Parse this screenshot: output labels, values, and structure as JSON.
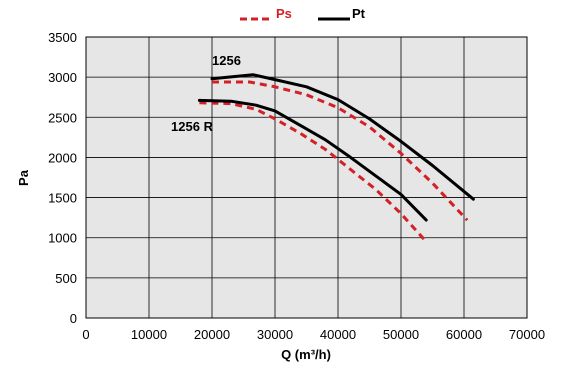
{
  "chart_data": {
    "type": "line",
    "xlabel": "Q (m³/h)",
    "ylabel": "Pa",
    "xlim": [
      0,
      70000
    ],
    "ylim": [
      0,
      3500
    ],
    "x_ticks": [
      "0",
      "10000",
      "20000",
      "30000",
      "40000",
      "50000",
      "60000",
      "70000"
    ],
    "y_ticks": [
      "0",
      "500",
      "1000",
      "1500",
      "2000",
      "2500",
      "3000",
      "3500"
    ],
    "grid": true,
    "legend_position": "top",
    "legend": [
      {
        "name": "Ps",
        "color": "#d42027",
        "style": "dashed"
      },
      {
        "name": "Pt",
        "color": "#000000",
        "style": "solid"
      }
    ],
    "annotations": [
      {
        "text": "1256",
        "x": 20000,
        "y": 3150
      },
      {
        "text": "1256 R",
        "x": 13500,
        "y": 2330
      }
    ],
    "series": [
      {
        "name": "Ps",
        "curve": "1256",
        "color": "#d42027",
        "style": "dashed",
        "x": [
          20000,
          26000,
          30000,
          35000,
          40000,
          45000,
          50000,
          55000,
          60500
        ],
        "y": [
          2940,
          2940,
          2880,
          2780,
          2620,
          2380,
          2050,
          1680,
          1220
        ]
      },
      {
        "name": "Pt",
        "curve": "1256",
        "color": "#000000",
        "style": "solid",
        "x": [
          20000,
          26500,
          30000,
          35000,
          40000,
          45000,
          50000,
          55000,
          61500
        ],
        "y": [
          2980,
          3030,
          2970,
          2880,
          2720,
          2480,
          2200,
          1900,
          1480
        ]
      },
      {
        "name": "Ps",
        "curve": "1256 R",
        "color": "#d42027",
        "style": "dashed",
        "x": [
          18000,
          23000,
          27000,
          30000,
          34000,
          38000,
          42000,
          46000,
          50000,
          54000
        ],
        "y": [
          2680,
          2670,
          2600,
          2480,
          2300,
          2100,
          1850,
          1600,
          1300,
          950
        ]
      },
      {
        "name": "Pt",
        "curve": "1256 R",
        "color": "#000000",
        "style": "solid",
        "x": [
          18000,
          23000,
          27000,
          30000,
          34000,
          38000,
          42000,
          46000,
          50000,
          54000
        ],
        "y": [
          2710,
          2700,
          2650,
          2580,
          2400,
          2220,
          2000,
          1770,
          1540,
          1220
        ]
      }
    ]
  }
}
